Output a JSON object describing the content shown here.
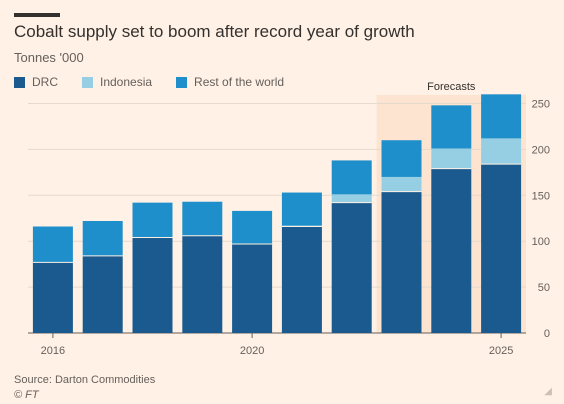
{
  "chart_data": {
    "type": "bar",
    "stacked": true,
    "title": "Cobalt supply set to boom after record year of growth",
    "subtitle": "Tonnes '000",
    "annotation": "Forecasts",
    "categories": [
      "2016",
      "2017",
      "2018",
      "2019",
      "2020",
      "2021",
      "2022",
      "2023",
      "2024",
      "2025"
    ],
    "x_tick_labels": {
      "2016": "2016",
      "2020": "2020",
      "2025": "2025"
    },
    "forecast_categories": [
      "2023",
      "2024",
      "2025"
    ],
    "series": [
      {
        "name": "DRC",
        "color": "#1B5A8E",
        "values": [
          77,
          84,
          104,
          106,
          97,
          116,
          142,
          154,
          179,
          184
        ]
      },
      {
        "name": "Indonesia",
        "color": "#96CFE3",
        "values": [
          0,
          0,
          0,
          0,
          0,
          1,
          9,
          16,
          22,
          28
        ]
      },
      {
        "name": "Rest of the world",
        "color": "#1E8FCB",
        "values": [
          39,
          38,
          38,
          37,
          36,
          36,
          37,
          40,
          47,
          48
        ]
      }
    ],
    "ylim": [
      0,
      260
    ],
    "yticks": [
      0,
      50,
      100,
      150,
      200,
      250
    ],
    "y_axis_side": "right",
    "grid": true,
    "legend": "top-left"
  },
  "source": "Source: Darton Commodities",
  "credit": "© FT",
  "corner_mark": "◢"
}
